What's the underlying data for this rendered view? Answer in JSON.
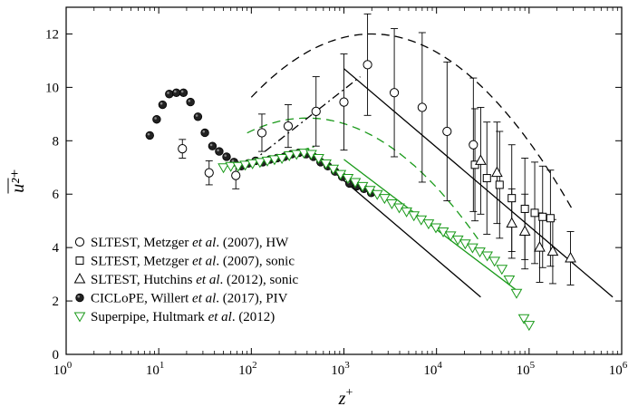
{
  "chart_data": {
    "type": "scatter",
    "xscale": "log",
    "xlim": [
      1,
      1000000
    ],
    "ylim": [
      0,
      13
    ],
    "xlabel": "z",
    "xlabel_sup": "+",
    "ylabel": "u²⁺",
    "grid": false,
    "legend_placement": "bottom-left",
    "x_ticks": [
      1,
      10,
      100,
      1000,
      10000,
      100000,
      1000000
    ],
    "x_tick_labels": [
      {
        "base": "10",
        "exp": "0"
      },
      {
        "base": "10",
        "exp": "1"
      },
      {
        "base": "10",
        "exp": "2"
      },
      {
        "base": "10",
        "exp": "3"
      },
      {
        "base": "10",
        "exp": "4"
      },
      {
        "base": "10",
        "exp": "5"
      },
      {
        "base": "10",
        "exp": "6"
      }
    ],
    "y_ticks": [
      0,
      2,
      4,
      6,
      8,
      10,
      12
    ],
    "y_tick_labels": [
      "0",
      "2",
      "4",
      "6",
      "8",
      "10",
      "12"
    ],
    "colors": {
      "black": "#000000",
      "green": "#1a9a1a"
    },
    "series": [
      {
        "id": "hw",
        "legend": [
          {
            "t": "SLTEST, Metzger ",
            "i": false
          },
          {
            "t": "et al",
            "i": true
          },
          {
            "t": ". (2007), HW",
            "i": false
          }
        ],
        "marker": "circle-open",
        "color": "#000000",
        "points": [
          {
            "x": 18,
            "y": 7.7,
            "err": 0.35
          },
          {
            "x": 35,
            "y": 6.8,
            "err": 0.45
          },
          {
            "x": 68,
            "y": 6.7,
            "err": 0.5
          },
          {
            "x": 130,
            "y": 8.3,
            "err": 0.7
          },
          {
            "x": 250,
            "y": 8.55,
            "err": 0.8
          },
          {
            "x": 500,
            "y": 9.1,
            "err": 1.3
          },
          {
            "x": 1000,
            "y": 9.45,
            "err": 1.8
          },
          {
            "x": 1800,
            "y": 10.85,
            "err": 1.9
          },
          {
            "x": 3500,
            "y": 9.8,
            "err": 2.4
          },
          {
            "x": 7000,
            "y": 9.25,
            "err": 2.8
          },
          {
            "x": 13000,
            "y": 8.35,
            "err": 2.6
          },
          {
            "x": 25000,
            "y": 7.85,
            "err": 2.5
          }
        ]
      },
      {
        "id": "sonic07",
        "legend": [
          {
            "t": "SLTEST, Metzger ",
            "i": false
          },
          {
            "t": "et al",
            "i": true
          },
          {
            "t": ". (2007), sonic",
            "i": false
          }
        ],
        "marker": "square-open",
        "color": "#000000",
        "points": [
          {
            "x": 26000,
            "y": 7.1,
            "err": 2.1
          },
          {
            "x": 35000,
            "y": 6.6,
            "err": 2.1
          },
          {
            "x": 48000,
            "y": 6.35,
            "err": 2.0
          },
          {
            "x": 65000,
            "y": 5.85,
            "err": 2.0
          },
          {
            "x": 90000,
            "y": 5.45,
            "err": 1.9
          },
          {
            "x": 115000,
            "y": 5.3,
            "err": 1.9
          },
          {
            "x": 140000,
            "y": 5.15,
            "err": 1.9
          },
          {
            "x": 170000,
            "y": 5.1,
            "err": 1.8
          }
        ]
      },
      {
        "id": "sonic12",
        "legend": [
          {
            "t": "SLTEST, Hutchins ",
            "i": false
          },
          {
            "t": "et al",
            "i": true
          },
          {
            "t": ". (2012), sonic",
            "i": false
          }
        ],
        "marker": "triangle-open",
        "color": "#000000",
        "points": [
          {
            "x": 30000,
            "y": 7.25,
            "err": 2.0
          },
          {
            "x": 45000,
            "y": 6.8,
            "err": 1.9
          },
          {
            "x": 65000,
            "y": 4.9,
            "err": 1.3
          },
          {
            "x": 90000,
            "y": 4.6,
            "err": 1.4
          },
          {
            "x": 130000,
            "y": 4.0,
            "err": 1.3
          },
          {
            "x": 180000,
            "y": 3.85,
            "err": 1.2
          },
          {
            "x": 280000,
            "y": 3.6,
            "err": 1.0
          }
        ]
      },
      {
        "id": "piv",
        "legend": [
          {
            "t": "CICLoPE, Willert ",
            "i": false
          },
          {
            "t": "et al",
            "i": true
          },
          {
            "t": ". (2017), PIV",
            "i": false
          }
        ],
        "marker": "circle-filled",
        "color": "#000000",
        "points": [
          {
            "x": 8,
            "y": 8.2
          },
          {
            "x": 9.5,
            "y": 8.8
          },
          {
            "x": 11,
            "y": 9.35
          },
          {
            "x": 13,
            "y": 9.75
          },
          {
            "x": 15.5,
            "y": 9.8
          },
          {
            "x": 18.5,
            "y": 9.8
          },
          {
            "x": 22,
            "y": 9.45
          },
          {
            "x": 26.5,
            "y": 8.9
          },
          {
            "x": 31.5,
            "y": 8.3
          },
          {
            "x": 38,
            "y": 7.8
          },
          {
            "x": 45,
            "y": 7.6
          },
          {
            "x": 54,
            "y": 7.4
          },
          {
            "x": 65,
            "y": 7.2
          },
          {
            "x": 78,
            "y": 7.05
          },
          {
            "x": 93,
            "y": 7.15
          },
          {
            "x": 111,
            "y": 7.25
          },
          {
            "x": 133,
            "y": 7.2
          },
          {
            "x": 159,
            "y": 7.3
          },
          {
            "x": 190,
            "y": 7.35
          },
          {
            "x": 228,
            "y": 7.4
          },
          {
            "x": 273,
            "y": 7.5
          },
          {
            "x": 327,
            "y": 7.55
          },
          {
            "x": 391,
            "y": 7.5
          },
          {
            "x": 468,
            "y": 7.4
          },
          {
            "x": 560,
            "y": 7.2
          },
          {
            "x": 670,
            "y": 7.05
          },
          {
            "x": 802,
            "y": 6.85
          },
          {
            "x": 960,
            "y": 6.65
          },
          {
            "x": 1150,
            "y": 6.4
          },
          {
            "x": 1376,
            "y": 6.3
          },
          {
            "x": 1647,
            "y": 6.2
          },
          {
            "x": 1971,
            "y": 6.05
          }
        ]
      },
      {
        "id": "superpipe",
        "legend": [
          {
            "t": "Superpipe, Hultmark ",
            "i": false
          },
          {
            "t": "et al",
            "i": true
          },
          {
            "t": ". (2012)",
            "i": false
          }
        ],
        "marker": "triangle-down-open",
        "color": "#1a9a1a",
        "points": [
          {
            "x": 50,
            "y": 7.0
          },
          {
            "x": 60,
            "y": 7.05
          },
          {
            "x": 72,
            "y": 7.05
          },
          {
            "x": 86,
            "y": 7.1
          },
          {
            "x": 103,
            "y": 7.15
          },
          {
            "x": 124,
            "y": 7.2
          },
          {
            "x": 149,
            "y": 7.25
          },
          {
            "x": 178,
            "y": 7.3
          },
          {
            "x": 214,
            "y": 7.35
          },
          {
            "x": 257,
            "y": 7.45
          },
          {
            "x": 308,
            "y": 7.5
          },
          {
            "x": 370,
            "y": 7.55
          },
          {
            "x": 444,
            "y": 7.5
          },
          {
            "x": 532,
            "y": 7.35
          },
          {
            "x": 639,
            "y": 7.15
          },
          {
            "x": 767,
            "y": 6.95
          },
          {
            "x": 920,
            "y": 6.75
          },
          {
            "x": 1104,
            "y": 6.6
          },
          {
            "x": 1325,
            "y": 6.45
          },
          {
            "x": 1590,
            "y": 6.3
          },
          {
            "x": 1908,
            "y": 6.15
          },
          {
            "x": 2290,
            "y": 6.0
          },
          {
            "x": 2748,
            "y": 5.85
          },
          {
            "x": 3297,
            "y": 5.65
          },
          {
            "x": 3957,
            "y": 5.5
          },
          {
            "x": 4748,
            "y": 5.35
          },
          {
            "x": 5698,
            "y": 5.2
          },
          {
            "x": 6837,
            "y": 5.05
          },
          {
            "x": 8205,
            "y": 4.9
          },
          {
            "x": 9846,
            "y": 4.75
          },
          {
            "x": 11815,
            "y": 4.6
          },
          {
            "x": 14178,
            "y": 4.45
          },
          {
            "x": 17014,
            "y": 4.3
          },
          {
            "x": 20416,
            "y": 4.15
          },
          {
            "x": 24500,
            "y": 4.0
          },
          {
            "x": 29400,
            "y": 3.85
          },
          {
            "x": 35280,
            "y": 3.7
          },
          {
            "x": 42336,
            "y": 3.5
          },
          {
            "x": 50803,
            "y": 3.2
          },
          {
            "x": 60964,
            "y": 2.8
          },
          {
            "x": 73157,
            "y": 2.3
          },
          {
            "x": 87788,
            "y": 1.35
          },
          {
            "x": 100000,
            "y": 1.1
          }
        ]
      }
    ],
    "curves": [
      {
        "id": "dashed-black",
        "style": "dashed",
        "color": "#000000",
        "kind": "quadratic-log",
        "vertex_x": 2000,
        "vertex_y": 12.0,
        "k": 1.4,
        "x_from": 100,
        "x_to": 300000
      },
      {
        "id": "dashed-green",
        "style": "dashed",
        "color": "#1a9a1a",
        "kind": "quadratic-log",
        "vertex_x": 400,
        "vertex_y": 8.85,
        "k": 1.33,
        "x_from": 90,
        "x_to": 28000
      },
      {
        "id": "dashdot-black",
        "style": "dashdot",
        "color": "#000000",
        "kind": "line",
        "points": [
          [
            100,
            7.2
          ],
          [
            1500,
            10.4
          ]
        ]
      },
      {
        "id": "dashdot-green",
        "style": "dashdot",
        "color": "#1a9a1a",
        "kind": "line",
        "points": [
          [
            100,
            7.1
          ],
          [
            500,
            7.8
          ]
        ]
      },
      {
        "id": "solid-black-upper",
        "style": "solid",
        "color": "#000000",
        "kind": "line",
        "points": [
          [
            1000,
            10.7
          ],
          [
            800000,
            2.15
          ]
        ]
      },
      {
        "id": "solid-black-lower",
        "style": "solid",
        "color": "#000000",
        "kind": "line",
        "points": [
          [
            500,
            7.4
          ],
          [
            30000,
            2.15
          ]
        ]
      },
      {
        "id": "solid-green",
        "style": "solid",
        "color": "#1a9a1a",
        "kind": "line",
        "points": [
          [
            1000,
            7.3
          ],
          [
            80000,
            2.3
          ]
        ]
      }
    ]
  }
}
